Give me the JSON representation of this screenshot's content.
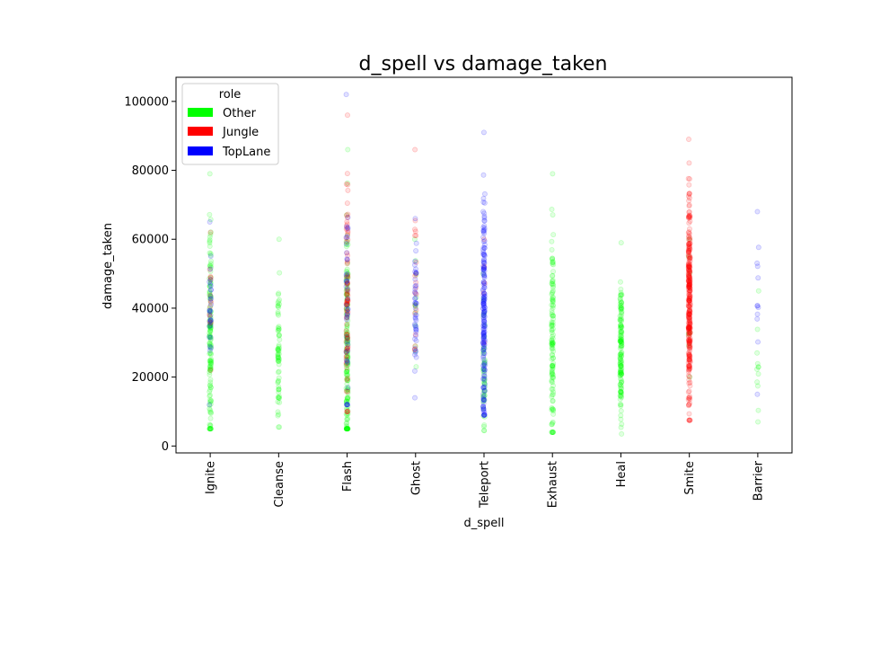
{
  "chart_data": {
    "type": "scatter",
    "title": "d_spell vs damage_taken",
    "xlabel": "d_spell",
    "ylabel": "damage_taken",
    "categories": [
      "Ignite",
      "Cleanse",
      "Flash",
      "Ghost",
      "Teleport",
      "Exhaust",
      "Heal",
      "Smite",
      "Barrier"
    ],
    "ylim": [
      -2000,
      107000
    ],
    "yticks": [
      0,
      20000,
      40000,
      60000,
      80000,
      100000
    ],
    "ytick_labels": [
      "0",
      "20000",
      "40000",
      "60000",
      "80000",
      "100000"
    ],
    "grid": false,
    "legend": {
      "title": "role",
      "position": "top-left",
      "entries": [
        {
          "name": "Other",
          "color": "#00ff00"
        },
        {
          "name": "Jungle",
          "color": "#ff0000"
        },
        {
          "name": "TopLane",
          "color": "#0000ff"
        }
      ]
    },
    "series": [
      {
        "name": "Other",
        "color": "#00ff00",
        "ranges": [
          {
            "category": "Ignite",
            "min": 5000,
            "max": 79000,
            "median": 30000,
            "count": 140
          },
          {
            "category": "Cleanse",
            "min": 5500,
            "max": 60000,
            "median": 27000,
            "count": 70
          },
          {
            "category": "Flash",
            "min": 5000,
            "max": 86000,
            "median": 28000,
            "count": 160
          },
          {
            "category": "Ghost",
            "min": 23000,
            "max": 60000,
            "median": 38000,
            "count": 12
          },
          {
            "category": "Teleport",
            "min": 4500,
            "max": 50000,
            "median": 22000,
            "count": 45
          },
          {
            "category": "Exhaust",
            "min": 4000,
            "max": 79000,
            "median": 27000,
            "count": 130
          },
          {
            "category": "Heal",
            "min": 3500,
            "max": 59000,
            "median": 28000,
            "count": 150
          },
          {
            "category": "Smite",
            "min": 20000,
            "max": 60000,
            "median": 38000,
            "count": 8
          },
          {
            "category": "Barrier",
            "min": 7000,
            "max": 45000,
            "median": 22000,
            "count": 12
          }
        ]
      },
      {
        "name": "Jungle",
        "color": "#ff0000",
        "ranges": [
          {
            "category": "Ignite",
            "min": 22000,
            "max": 62000,
            "median": 40000,
            "count": 15
          },
          {
            "category": "Flash",
            "min": 10000,
            "max": 96000,
            "median": 45000,
            "count": 90
          },
          {
            "category": "Ghost",
            "min": 28000,
            "max": 86000,
            "median": 50000,
            "count": 20
          },
          {
            "category": "Teleport",
            "min": 30000,
            "max": 60000,
            "median": 45000,
            "count": 5
          },
          {
            "category": "Smite",
            "min": 7500,
            "max": 89000,
            "median": 42000,
            "count": 320
          }
        ]
      },
      {
        "name": "TopLane",
        "color": "#0000ff",
        "ranges": [
          {
            "category": "Ignite",
            "min": 12000,
            "max": 65000,
            "median": 38000,
            "count": 30
          },
          {
            "category": "Flash",
            "min": 12000,
            "max": 102000,
            "median": 45000,
            "count": 40
          },
          {
            "category": "Ghost",
            "min": 14000,
            "max": 66000,
            "median": 40000,
            "count": 45
          },
          {
            "category": "Teleport",
            "min": 9000,
            "max": 91000,
            "median": 40000,
            "count": 190
          },
          {
            "category": "Barrier",
            "min": 15000,
            "max": 68000,
            "median": 40000,
            "count": 12
          }
        ]
      }
    ]
  }
}
